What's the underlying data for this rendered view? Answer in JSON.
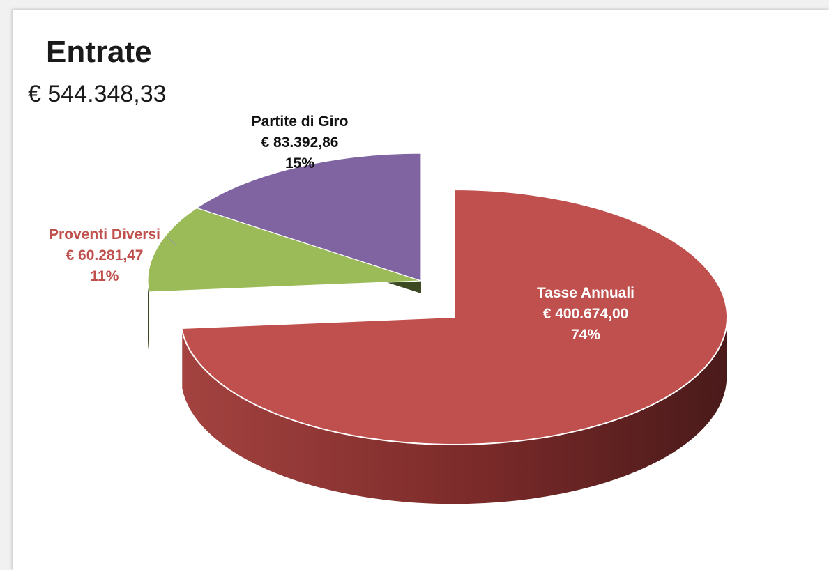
{
  "chart_data": {
    "type": "pie",
    "title": "Entrate",
    "subtitle": "€ 544.348,33",
    "slices": [
      {
        "name": "Tasse Annuali",
        "value": 400674.0,
        "value_label": "€ 400.674,00",
        "percent_label": "74%",
        "color": "#c0504d",
        "side_color": "#8e2f2d",
        "exploded": true
      },
      {
        "name": "Proventi Diversi",
        "value": 60281.47,
        "value_label": "€ 60.281,47",
        "percent_label": "11%",
        "color": "#9bbb59",
        "side_color": "#3b4a22",
        "exploded": false
      },
      {
        "name": "Partite di Giro",
        "value": 83392.86,
        "value_label": "€ 83.392,86",
        "percent_label": "15%",
        "color": "#8064a2",
        "side_color": "#4a3a60",
        "exploded": false
      }
    ],
    "style": "3d-exploded",
    "legend": "none"
  }
}
